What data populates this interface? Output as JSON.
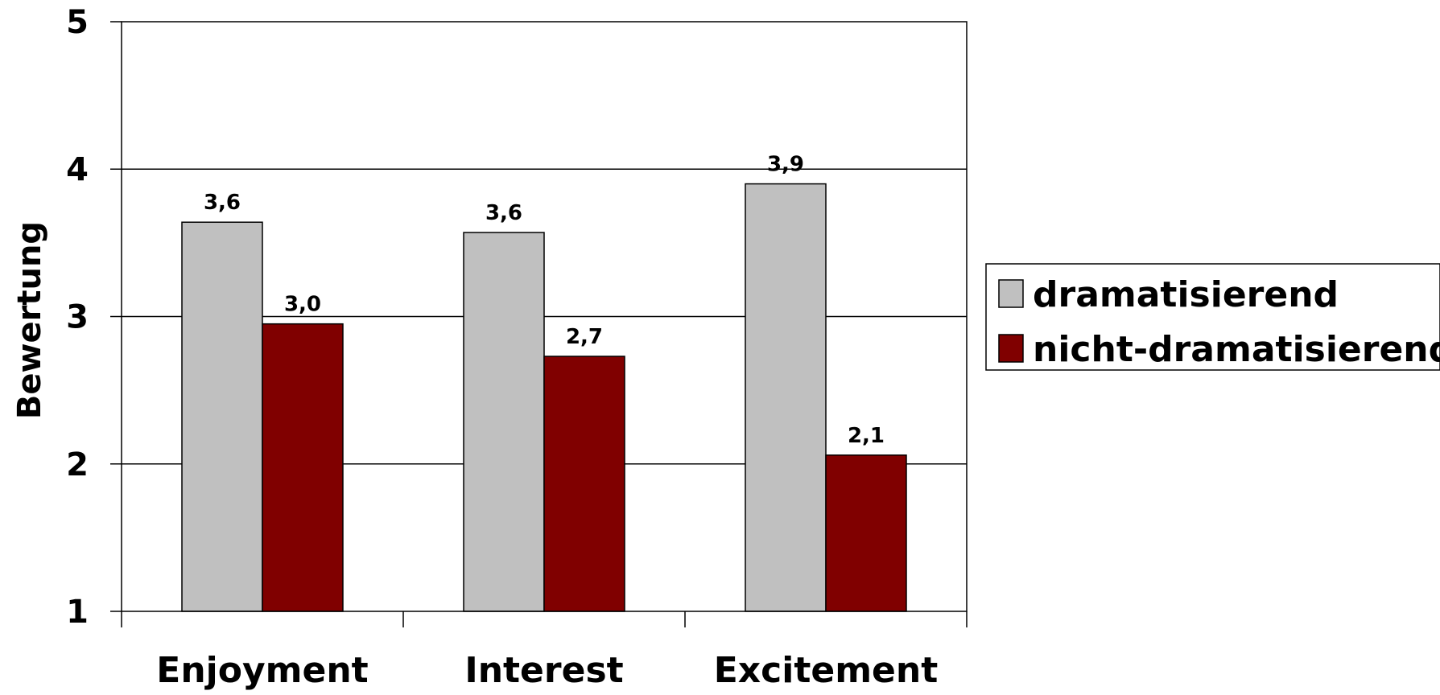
{
  "chart_data": {
    "type": "bar",
    "title": "",
    "xlabel": "",
    "ylabel": "Bewertung",
    "categories": [
      "Enjoyment",
      "Interest",
      "Excitement"
    ],
    "series": [
      {
        "name": "dramatisierend",
        "color": "#c0c0c0",
        "values": [
          3.64,
          3.57,
          3.9
        ],
        "labels": [
          "3,6",
          "3,6",
          "3,9"
        ]
      },
      {
        "name": "nicht-dramatisierend",
        "color": "#800000",
        "values": [
          2.95,
          2.73,
          2.06
        ],
        "labels": [
          "3,0",
          "2,7",
          "2,1"
        ]
      }
    ],
    "ylim": [
      1,
      5
    ],
    "yticks": [
      "1",
      "2",
      "3",
      "4",
      "5"
    ],
    "grid": true,
    "legend_position": "right"
  }
}
